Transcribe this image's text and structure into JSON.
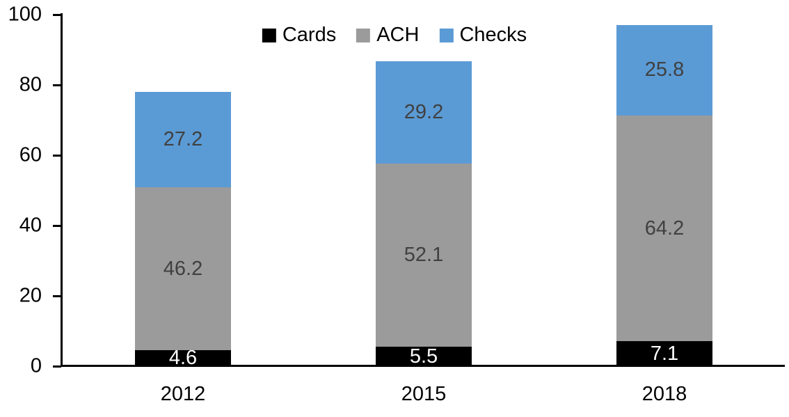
{
  "chart_data": {
    "type": "bar",
    "stacked": true,
    "categories": [
      "2012",
      "2015",
      "2018"
    ],
    "series": [
      {
        "name": "Cards",
        "values": [
          4.6,
          5.5,
          7.1
        ],
        "color": "#000000",
        "label_color": "#ffffff"
      },
      {
        "name": "ACH",
        "values": [
          46.2,
          52.1,
          64.2
        ],
        "color": "#9b9b9b",
        "label_color": "#404040"
      },
      {
        "name": "Checks",
        "values": [
          27.2,
          29.2,
          25.8
        ],
        "color": "#5b9bd5",
        "label_color": "#404040"
      }
    ],
    "totals": [
      78.0,
      86.8,
      97.1
    ],
    "ylim": [
      0,
      100
    ],
    "yticks": [
      0,
      20,
      40,
      60,
      80,
      100
    ],
    "grid": false,
    "legend_position": "top-center",
    "axis_color": "#000000",
    "data_labels_shown": true
  }
}
